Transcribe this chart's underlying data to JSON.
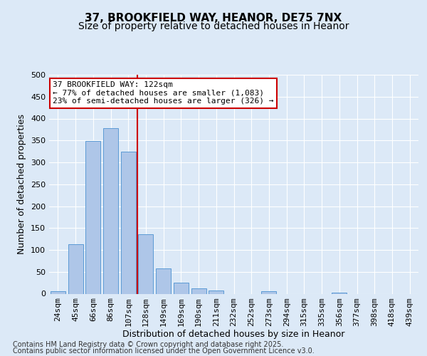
{
  "title_line1": "37, BROOKFIELD WAY, HEANOR, DE75 7NX",
  "title_line2": "Size of property relative to detached houses in Heanor",
  "xlabel": "Distribution of detached houses by size in Heanor",
  "ylabel": "Number of detached properties",
  "categories": [
    "24sqm",
    "45sqm",
    "66sqm",
    "86sqm",
    "107sqm",
    "128sqm",
    "149sqm",
    "169sqm",
    "190sqm",
    "211sqm",
    "232sqm",
    "252sqm",
    "273sqm",
    "294sqm",
    "315sqm",
    "335sqm",
    "356sqm",
    "377sqm",
    "398sqm",
    "418sqm",
    "439sqm"
  ],
  "values": [
    5,
    113,
    348,
    378,
    325,
    135,
    58,
    25,
    12,
    7,
    0,
    0,
    5,
    0,
    0,
    0,
    2,
    0,
    0,
    0,
    0
  ],
  "bar_color": "#aec6e8",
  "bar_edge_color": "#5b9bd5",
  "vline_x_index": 5,
  "vline_color": "#cc0000",
  "annotation_line1": "37 BROOKFIELD WAY: 122sqm",
  "annotation_line2": "← 77% of detached houses are smaller (1,083)",
  "annotation_line3": "23% of semi-detached houses are larger (326) →",
  "annotation_box_color": "#cc0000",
  "annotation_box_bg": "white",
  "ylim": [
    0,
    500
  ],
  "yticks": [
    0,
    50,
    100,
    150,
    200,
    250,
    300,
    350,
    400,
    450,
    500
  ],
  "bg_color": "#dce9f7",
  "plot_bg_color": "#dce9f7",
  "footer_line1": "Contains HM Land Registry data © Crown copyright and database right 2025.",
  "footer_line2": "Contains public sector information licensed under the Open Government Licence v3.0.",
  "font_size_title1": 11,
  "font_size_title2": 10,
  "font_size_labels": 9,
  "font_size_ticks": 8,
  "font_size_annotation": 8,
  "font_size_footer": 7
}
